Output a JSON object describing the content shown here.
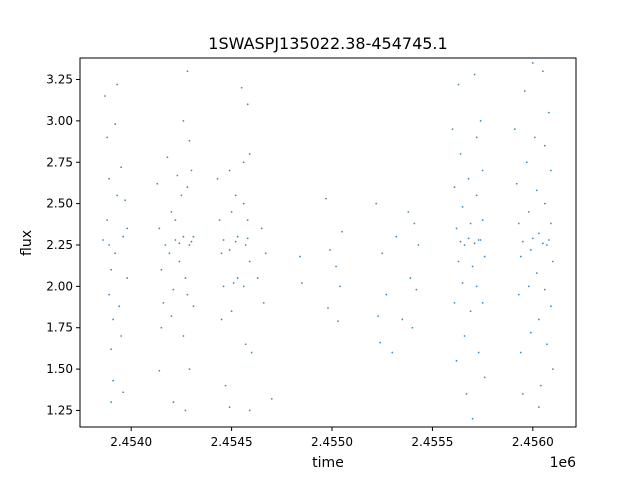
{
  "chart_data": {
    "type": "scatter",
    "title": "1SWASPJ135022.38-454745.1",
    "xlabel": "time",
    "ylabel": "flux",
    "x_offset_label": "1e6",
    "xlim": [
      2.453745,
      2.456215
    ],
    "ylim": [
      1.15,
      3.38
    ],
    "x_ticks": [
      2.454,
      2.4545,
      2.455,
      2.4555,
      2.456
    ],
    "x_tick_labels": [
      "2.4540",
      "2.4545",
      "2.4550",
      "2.4555",
      "2.4560"
    ],
    "y_ticks": [
      1.25,
      1.5,
      1.75,
      2.0,
      2.25,
      2.5,
      2.75,
      3.0,
      3.25
    ],
    "y_tick_labels": [
      "1.25",
      "1.50",
      "1.75",
      "2.00",
      "2.25",
      "2.50",
      "2.75",
      "3.00",
      "3.25"
    ],
    "grid": false,
    "legend": false,
    "marker_color": "#1f77b4",
    "marker": "small dots",
    "series": [
      {
        "points": [
          [
            2.45387,
            3.15
          ],
          [
            2.45388,
            2.9
          ],
          [
            2.45389,
            2.65
          ],
          [
            2.45388,
            2.4
          ],
          [
            2.45389,
            2.25
          ],
          [
            2.4539,
            2.1
          ],
          [
            2.45389,
            1.95
          ],
          [
            2.45391,
            1.8
          ],
          [
            2.4539,
            1.62
          ],
          [
            2.45391,
            1.43
          ],
          [
            2.45393,
            3.22
          ],
          [
            2.45392,
            2.98
          ],
          [
            2.45393,
            2.55
          ],
          [
            2.45392,
            2.2
          ],
          [
            2.45394,
            1.88
          ],
          [
            2.45395,
            2.72
          ],
          [
            2.45396,
            2.3
          ],
          [
            2.45395,
            1.7
          ],
          [
            2.45397,
            2.52
          ],
          [
            2.45398,
            2.05
          ],
          [
            2.45396,
            1.36
          ],
          [
            2.4539,
            1.3
          ],
          [
            2.45386,
            2.28
          ],
          [
            2.45398,
            2.35
          ],
          [
            2.45413,
            2.62
          ],
          [
            2.45414,
            2.35
          ],
          [
            2.45415,
            2.1
          ],
          [
            2.45416,
            1.9
          ],
          [
            2.45415,
            1.75
          ],
          [
            2.45414,
            1.49
          ],
          [
            2.45418,
            2.78
          ],
          [
            2.4542,
            2.45
          ],
          [
            2.45419,
            2.2
          ],
          [
            2.45421,
            1.98
          ],
          [
            2.4542,
            1.82
          ],
          [
            2.45421,
            1.3
          ],
          [
            2.45423,
            2.67
          ],
          [
            2.45422,
            2.4
          ],
          [
            2.45424,
            2.15
          ],
          [
            2.45426,
            3.0
          ],
          [
            2.45425,
            2.55
          ],
          [
            2.45426,
            2.3
          ],
          [
            2.45427,
            2.05
          ],
          [
            2.45426,
            1.7
          ],
          [
            2.45427,
            1.25
          ],
          [
            2.45428,
            3.3
          ],
          [
            2.45429,
            2.88
          ],
          [
            2.45428,
            2.6
          ],
          [
            2.45429,
            2.25
          ],
          [
            2.45428,
            1.95
          ],
          [
            2.45429,
            1.5
          ],
          [
            2.4543,
            2.7
          ],
          [
            2.45431,
            2.3
          ],
          [
            2.45431,
            1.88
          ],
          [
            2.45417,
            2.25
          ],
          [
            2.45422,
            2.28
          ],
          [
            2.45424,
            2.26
          ],
          [
            2.4543,
            2.27
          ],
          [
            2.45443,
            2.65
          ],
          [
            2.45444,
            2.4
          ],
          [
            2.45445,
            2.2
          ],
          [
            2.45446,
            2.0
          ],
          [
            2.45445,
            1.8
          ],
          [
            2.45447,
            1.4
          ],
          [
            2.45449,
            2.7
          ],
          [
            2.4545,
            2.45
          ],
          [
            2.45449,
            2.22
          ],
          [
            2.45451,
            2.02
          ],
          [
            2.4545,
            1.85
          ],
          [
            2.45449,
            1.27
          ],
          [
            2.45452,
            2.55
          ],
          [
            2.45453,
            2.3
          ],
          [
            2.45453,
            2.05
          ],
          [
            2.45455,
            3.2
          ],
          [
            2.45456,
            2.75
          ],
          [
            2.45456,
            2.5
          ],
          [
            2.45457,
            2.25
          ],
          [
            2.45456,
            2.0
          ],
          [
            2.45457,
            1.65
          ],
          [
            2.45458,
            3.1
          ],
          [
            2.45459,
            2.8
          ],
          [
            2.45458,
            2.4
          ],
          [
            2.45459,
            2.15
          ],
          [
            2.4546,
            1.6
          ],
          [
            2.45459,
            1.25
          ],
          [
            2.45446,
            2.28
          ],
          [
            2.45452,
            2.27
          ],
          [
            2.45458,
            2.29
          ],
          [
            2.45463,
            2.05
          ],
          [
            2.45465,
            2.35
          ],
          [
            2.45466,
            1.9
          ],
          [
            2.45467,
            2.2
          ],
          [
            2.4547,
            1.32
          ],
          [
            2.45484,
            2.18
          ],
          [
            2.45485,
            2.02
          ],
          [
            2.45497,
            2.53
          ],
          [
            2.45498,
            1.87
          ],
          [
            2.45499,
            2.22
          ],
          [
            2.45502,
            2.12
          ],
          [
            2.45503,
            1.79
          ],
          [
            2.45504,
            2.0
          ],
          [
            2.45505,
            2.33
          ],
          [
            2.45522,
            2.5
          ],
          [
            2.45523,
            1.82
          ],
          [
            2.45524,
            1.66
          ],
          [
            2.45525,
            2.2
          ],
          [
            2.45527,
            1.95
          ],
          [
            2.4553,
            1.6
          ],
          [
            2.45532,
            2.3
          ],
          [
            2.45535,
            1.8
          ],
          [
            2.45538,
            2.45
          ],
          [
            2.45539,
            2.05
          ],
          [
            2.4554,
            1.75
          ],
          [
            2.45541,
            2.38
          ],
          [
            2.45542,
            1.98
          ],
          [
            2.45543,
            2.25
          ],
          [
            2.4556,
            2.95
          ],
          [
            2.45561,
            2.6
          ],
          [
            2.45562,
            2.35
          ],
          [
            2.45563,
            2.15
          ],
          [
            2.45561,
            1.9
          ],
          [
            2.45562,
            1.55
          ],
          [
            2.45563,
            3.22
          ],
          [
            2.45564,
            2.8
          ],
          [
            2.45565,
            2.48
          ],
          [
            2.45566,
            2.25
          ],
          [
            2.45565,
            2.02
          ],
          [
            2.45566,
            1.7
          ],
          [
            2.45567,
            1.35
          ],
          [
            2.45568,
            2.65
          ],
          [
            2.45569,
            2.38
          ],
          [
            2.4557,
            2.12
          ],
          [
            2.45569,
            1.85
          ],
          [
            2.4557,
            1.2
          ],
          [
            2.45571,
            3.28
          ],
          [
            2.45572,
            2.9
          ],
          [
            2.45572,
            2.55
          ],
          [
            2.45573,
            2.28
          ],
          [
            2.45572,
            2.0
          ],
          [
            2.45573,
            1.6
          ],
          [
            2.45574,
            3.0
          ],
          [
            2.45575,
            2.7
          ],
          [
            2.45575,
            2.4
          ],
          [
            2.45576,
            2.18
          ],
          [
            2.45575,
            1.9
          ],
          [
            2.45576,
            1.45
          ],
          [
            2.45564,
            2.27
          ],
          [
            2.45568,
            2.29
          ],
          [
            2.45571,
            2.26
          ],
          [
            2.45574,
            2.28
          ],
          [
            2.45591,
            2.95
          ],
          [
            2.45592,
            2.62
          ],
          [
            2.45593,
            2.38
          ],
          [
            2.45594,
            2.18
          ],
          [
            2.45593,
            1.95
          ],
          [
            2.45594,
            1.6
          ],
          [
            2.45595,
            1.35
          ],
          [
            2.45596,
            3.18
          ],
          [
            2.45597,
            2.75
          ],
          [
            2.45598,
            2.45
          ],
          [
            2.45599,
            2.22
          ],
          [
            2.45598,
            2.0
          ],
          [
            2.45599,
            1.72
          ],
          [
            2.456,
            3.35
          ],
          [
            2.45601,
            2.9
          ],
          [
            2.45602,
            2.58
          ],
          [
            2.45603,
            2.32
          ],
          [
            2.45602,
            2.08
          ],
          [
            2.45603,
            1.8
          ],
          [
            2.45604,
            1.4
          ],
          [
            2.45605,
            3.3
          ],
          [
            2.45606,
            2.85
          ],
          [
            2.45606,
            2.5
          ],
          [
            2.45607,
            2.25
          ],
          [
            2.45606,
            1.98
          ],
          [
            2.45607,
            1.65
          ],
          [
            2.45608,
            3.05
          ],
          [
            2.45609,
            2.7
          ],
          [
            2.45609,
            2.38
          ],
          [
            2.4561,
            2.15
          ],
          [
            2.45609,
            1.88
          ],
          [
            2.4561,
            1.5
          ],
          [
            2.45603,
            1.27
          ],
          [
            2.45595,
            2.27
          ],
          [
            2.456,
            2.29
          ],
          [
            2.45605,
            2.26
          ],
          [
            2.45608,
            2.28
          ]
        ]
      }
    ]
  }
}
